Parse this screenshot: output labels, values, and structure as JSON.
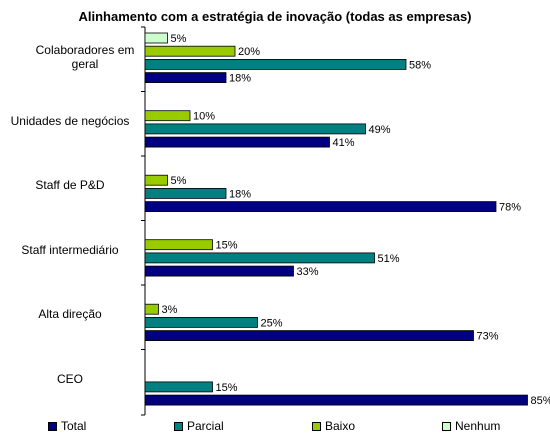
{
  "chart_data": {
    "type": "bar",
    "orientation": "horizontal",
    "title": "Alinhamento com a estratégia de inovação (todas as empresas)",
    "categories": [
      "Colaboradores em geral",
      "Unidades de negócios",
      "Staff de P&D",
      "Staff intermediário",
      "Alta direção",
      "CEO"
    ],
    "series": [
      {
        "name": "Nenhum",
        "color": "#ccffcc",
        "values": [
          5,
          null,
          null,
          null,
          null,
          null
        ],
        "labels": [
          "5%",
          "",
          "",
          "",
          "",
          ""
        ]
      },
      {
        "name": "Baixo",
        "color": "#99cc00",
        "values": [
          20,
          10,
          5,
          15,
          3,
          null
        ],
        "labels": [
          "20%",
          "10%",
          "5%",
          "15%",
          "3%",
          ""
        ]
      },
      {
        "name": "Parcial",
        "color": "#008080",
        "values": [
          58,
          49,
          18,
          51,
          25,
          15
        ],
        "labels": [
          "58%",
          "49%",
          "18%",
          "51%",
          "25%",
          "15%"
        ]
      },
      {
        "name": "Total",
        "color": "#000080",
        "values": [
          18,
          41,
          78,
          33,
          73,
          85
        ],
        "labels": [
          "18%",
          "41%",
          "78%",
          "33%",
          "73%",
          "85%"
        ]
      }
    ],
    "legend_order": [
      "Total",
      "Parcial",
      "Baixo",
      "Nenhum"
    ],
    "xlim": [
      0,
      100
    ],
    "grid": false,
    "legend_position": "bottom"
  }
}
